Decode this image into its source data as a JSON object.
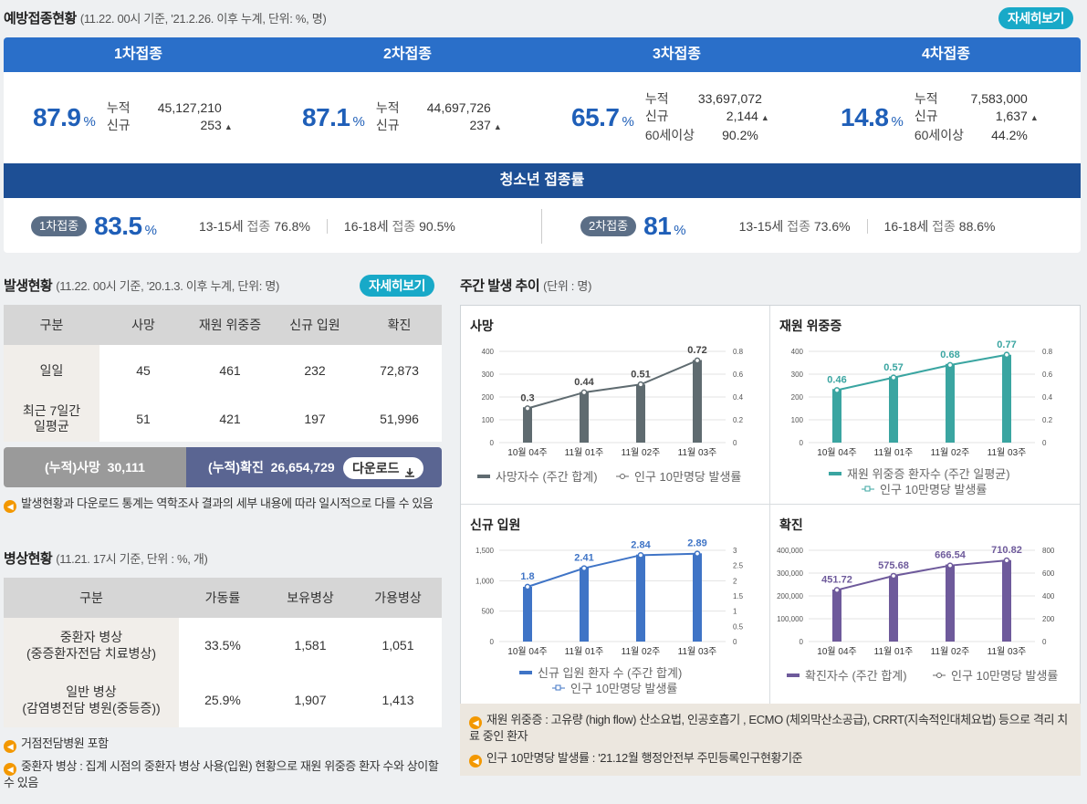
{
  "vaccination": {
    "title": "예방접종현황",
    "subtitle": "(11.22. 00시 기준, '21.2.26. 이후 누계, 단위: %, 명)",
    "detail_label": "자세히보기",
    "doses": [
      {
        "name": "1차접종",
        "rate": "87.9",
        "unit": "%",
        "rows": [
          {
            "k": "누적",
            "v": "45,127,210",
            "arrow": false
          },
          {
            "k": "신규",
            "v": "253",
            "arrow": true
          }
        ]
      },
      {
        "name": "2차접종",
        "rate": "87.1",
        "unit": "%",
        "rows": [
          {
            "k": "누적",
            "v": "44,697,726",
            "arrow": false
          },
          {
            "k": "신규",
            "v": "237",
            "arrow": true
          }
        ]
      },
      {
        "name": "3차접종",
        "rate": "65.7",
        "unit": "%",
        "rows": [
          {
            "k": "누적",
            "v": "33,697,072",
            "arrow": false
          },
          {
            "k": "신규",
            "v": "2,144",
            "arrow": true
          },
          {
            "k": "60세이상",
            "v": "90.2%",
            "arrow": false
          }
        ]
      },
      {
        "name": "4차접종",
        "rate": "14.8",
        "unit": "%",
        "rows": [
          {
            "k": "누적",
            "v": "7,583,000",
            "arrow": false
          },
          {
            "k": "신규",
            "v": "1,637",
            "arrow": true
          },
          {
            "k": "60세이상",
            "v": "44.2%",
            "arrow": false
          }
        ]
      }
    ],
    "teen": {
      "title": "청소년 접종률",
      "first": {
        "label": "1차접종",
        "rate": "83.5",
        "unit": "%",
        "a_age": "13-15세",
        "a_k": "접종",
        "a_v": "76.8%",
        "b_age": "16-18세",
        "b_k": "접종",
        "b_v": "90.5%"
      },
      "second": {
        "label": "2차접종",
        "rate": "81",
        "unit": "%",
        "a_age": "13-15세",
        "a_k": "접종",
        "a_v": "73.6%",
        "b_age": "16-18세",
        "b_k": "접종",
        "b_v": "88.6%"
      }
    }
  },
  "occurrence": {
    "title": "발생현황",
    "subtitle": "(11.22. 00시 기준, '20.1.3. 이후 누계, 단위: 명)",
    "detail_label": "자세히보기",
    "headers": [
      "구분",
      "사망",
      "재원 위중증",
      "신규 입원",
      "확진"
    ],
    "rows": [
      {
        "label": "일일",
        "values": [
          "45",
          "461",
          "232",
          "72,873"
        ]
      },
      {
        "label": "최근 7일간\n일평균",
        "values": [
          "51",
          "421",
          "197",
          "51,996"
        ]
      }
    ],
    "cum_death_label": "(누적)사망",
    "cum_death": "30,111",
    "cum_conf_label": "(누적)확진",
    "cum_conf": "26,654,729",
    "download_label": "다운로드",
    "note": "발생현황과 다운로드 통계는 역학조사 결과의 세부 내용에 따라 일시적으로 다를 수 있음"
  },
  "beds": {
    "title": "병상현황",
    "subtitle": "(11.21. 17시 기준, 단위 : %, 개)",
    "headers": [
      "구분",
      "가동률",
      "보유병상",
      "가용병상"
    ],
    "rows": [
      {
        "label1": "중환자 병상",
        "label2": "(중증환자전담 치료병상)",
        "values": [
          "33.5%",
          "1,581",
          "1,051"
        ]
      },
      {
        "label1": "일반 병상",
        "label2": "(감염병전담 병원(중등증))",
        "values": [
          "25.9%",
          "1,907",
          "1,413"
        ]
      }
    ],
    "notes": [
      "거점전담병원 포함",
      "중환자 병상 : 집계 시점의 중환자 병상 사용(입원) 현황으로 재원 위중증 환자 수와 상이할 수 있음"
    ]
  },
  "weekly": {
    "title": "주간 발생 추이",
    "subtitle": "(단위 : 명)",
    "notes": [
      "재원 위중증 : 고유량 (high flow) 산소요법, 인공호흡기 , ECMO (체외막산소공급), CRRT(지속적인대체요법) 등으로 격리 치료 중인 환자",
      "인구 10만명당 발생률 : '21.12월 행정안전부 주민등록인구현황기준"
    ]
  },
  "chart_data": [
    {
      "type": "bar",
      "title": "사망",
      "categories": [
        "10월 04주",
        "11월 01주",
        "11월 02주",
        "11월 03주"
      ],
      "series": [
        {
          "name": "사망자수 (주간 합계)",
          "values": [
            155,
            222,
            255,
            362
          ]
        },
        {
          "name": "인구 10만명당 발생률",
          "values": [
            0.3,
            0.44,
            0.51,
            0.72
          ]
        }
      ],
      "ylim": [
        0,
        400
      ],
      "y2lim": [
        0,
        0.8
      ],
      "yticks": [
        "0",
        "100",
        "200",
        "300",
        "400"
      ],
      "y2ticks": [
        "0",
        "0.2",
        "0.4",
        "0.6",
        "0.8"
      ],
      "color": "#5f6b70"
    },
    {
      "type": "bar",
      "title": "재원 위중증",
      "categories": [
        "10월 04주",
        "11월 01주",
        "11월 02주",
        "11월 03주"
      ],
      "series": [
        {
          "name": "재원 위중증 환자수 (주간 일평균)",
          "values": [
            235,
            290,
            345,
            385
          ]
        },
        {
          "name": "인구 10만명당 발생률",
          "values": [
            0.46,
            0.57,
            0.68,
            0.77
          ]
        }
      ],
      "ylim": [
        0,
        400
      ],
      "y2lim": [
        0,
        0.8
      ],
      "yticks": [
        "0",
        "100",
        "200",
        "300",
        "400"
      ],
      "y2ticks": [
        "0",
        "0.2",
        "0.4",
        "0.6",
        "0.8"
      ],
      "color": "#3aa5a1"
    },
    {
      "type": "bar",
      "title": "신규 입원",
      "categories": [
        "10월 04주",
        "11월 01주",
        "11월 02주",
        "11월 03주"
      ],
      "series": [
        {
          "name": "신규 입원 환자 수 (주간 합계)",
          "values": [
            900,
            1220,
            1430,
            1450
          ]
        },
        {
          "name": "인구 10만명당 발생률",
          "values": [
            1.8,
            2.41,
            2.84,
            2.89
          ]
        }
      ],
      "ylim": [
        0,
        1500
      ],
      "y2lim": [
        0,
        3
      ],
      "yticks": [
        "0",
        "500",
        "1,000",
        "1,500"
      ],
      "y2ticks": [
        "0",
        "0.5",
        "1",
        "1.5",
        "2",
        "2.5",
        "3"
      ],
      "color": "#3f74c6"
    },
    {
      "type": "bar",
      "title": "확진",
      "categories": [
        "10월 04주",
        "11월 01주",
        "11월 02주",
        "11월 03주"
      ],
      "series": [
        {
          "name": "확진자수 (주간 합계)",
          "values": [
            228000,
            289000,
            338000,
            357000
          ]
        },
        {
          "name": "인구 10만명당 발생률",
          "values": [
            451.72,
            575.68,
            666.54,
            710.82
          ]
        }
      ],
      "ylim": [
        0,
        400000
      ],
      "y2lim": [
        0,
        800
      ],
      "yticks": [
        "0",
        "100,000",
        "200,000",
        "300,000",
        "400,000"
      ],
      "y2ticks": [
        "0",
        "200",
        "400",
        "600",
        "800"
      ],
      "color": "#6e5a9b"
    }
  ]
}
